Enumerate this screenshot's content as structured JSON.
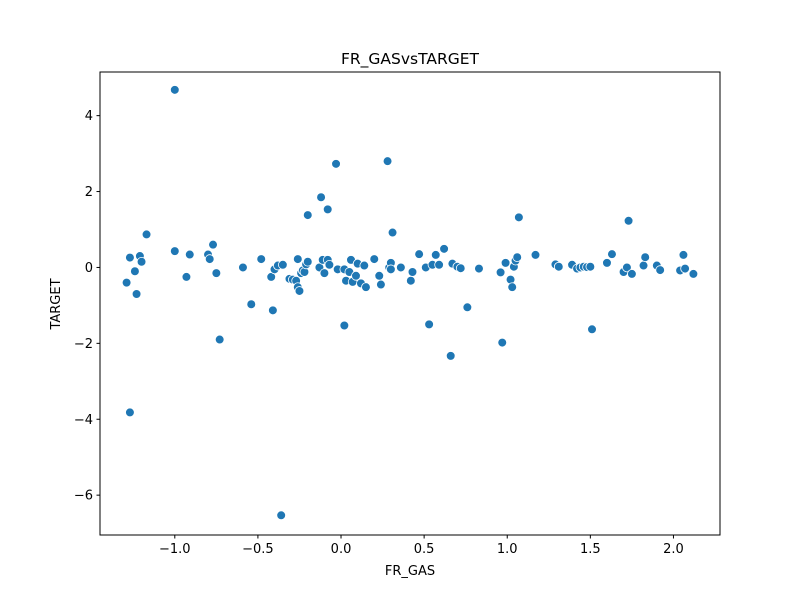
{
  "chart_data": {
    "type": "scatter",
    "title": "FR_GASvsTARGET",
    "xlabel": "FR_GAS",
    "ylabel": "TARGET",
    "xlim": [
      -1.45,
      2.28
    ],
    "ylim": [
      -7.05,
      5.15
    ],
    "xticks": [
      -1.0,
      -0.5,
      0.0,
      0.5,
      1.0,
      1.5,
      2.0
    ],
    "xtick_labels": [
      "−1.0",
      "−0.5",
      "0.0",
      "0.5",
      "1.0",
      "1.5",
      "2.0"
    ],
    "yticks": [
      -6,
      -4,
      -2,
      0,
      2,
      4
    ],
    "ytick_labels": [
      "−6",
      "−4",
      "−2",
      "0",
      "2",
      "4"
    ],
    "grid": false,
    "legend": "none",
    "color": "#1f77b4",
    "points": [
      {
        "x": -1.29,
        "y": -0.4
      },
      {
        "x": -1.27,
        "y": -3.82
      },
      {
        "x": -1.27,
        "y": 0.26
      },
      {
        "x": -1.24,
        "y": -0.1
      },
      {
        "x": -1.23,
        "y": -0.7
      },
      {
        "x": -1.21,
        "y": 0.3
      },
      {
        "x": -1.2,
        "y": 0.15
      },
      {
        "x": -1.17,
        "y": 0.87
      },
      {
        "x": -1.0,
        "y": 4.68
      },
      {
        "x": -1.0,
        "y": 0.43
      },
      {
        "x": -0.93,
        "y": -0.25
      },
      {
        "x": -0.91,
        "y": 0.34
      },
      {
        "x": -0.8,
        "y": 0.34
      },
      {
        "x": -0.79,
        "y": 0.22
      },
      {
        "x": -0.77,
        "y": 0.6
      },
      {
        "x": -0.75,
        "y": -0.15
      },
      {
        "x": -0.73,
        "y": -1.9
      },
      {
        "x": -0.59,
        "y": 0.0
      },
      {
        "x": -0.54,
        "y": -0.97
      },
      {
        "x": -0.48,
        "y": 0.22
      },
      {
        "x": -0.42,
        "y": -0.25
      },
      {
        "x": -0.41,
        "y": -1.13
      },
      {
        "x": -0.4,
        "y": -0.05
      },
      {
        "x": -0.38,
        "y": 0.05
      },
      {
        "x": -0.36,
        "y": -6.53
      },
      {
        "x": -0.35,
        "y": 0.07
      },
      {
        "x": -0.31,
        "y": -0.3
      },
      {
        "x": -0.29,
        "y": -0.32
      },
      {
        "x": -0.27,
        "y": -0.35
      },
      {
        "x": -0.26,
        "y": 0.22
      },
      {
        "x": -0.26,
        "y": -0.52
      },
      {
        "x": -0.25,
        "y": -0.62
      },
      {
        "x": -0.24,
        "y": -0.15
      },
      {
        "x": -0.23,
        "y": -0.08
      },
      {
        "x": -0.22,
        "y": -0.12
      },
      {
        "x": -0.21,
        "y": 0.08
      },
      {
        "x": -0.2,
        "y": 1.38
      },
      {
        "x": -0.2,
        "y": 0.15
      },
      {
        "x": -0.13,
        "y": 0.0
      },
      {
        "x": -0.12,
        "y": 1.85
      },
      {
        "x": -0.11,
        "y": 0.2
      },
      {
        "x": -0.1,
        "y": -0.15
      },
      {
        "x": -0.08,
        "y": 1.53
      },
      {
        "x": -0.08,
        "y": 0.2
      },
      {
        "x": -0.07,
        "y": 0.07
      },
      {
        "x": -0.03,
        "y": 2.73
      },
      {
        "x": -0.02,
        "y": -0.05
      },
      {
        "x": 0.02,
        "y": -0.05
      },
      {
        "x": 0.02,
        "y": -1.53
      },
      {
        "x": 0.03,
        "y": -0.35
      },
      {
        "x": 0.05,
        "y": -0.12
      },
      {
        "x": 0.06,
        "y": 0.2
      },
      {
        "x": 0.07,
        "y": -0.38
      },
      {
        "x": 0.09,
        "y": -0.22
      },
      {
        "x": 0.1,
        "y": 0.1
      },
      {
        "x": 0.12,
        "y": -0.42
      },
      {
        "x": 0.14,
        "y": 0.05
      },
      {
        "x": 0.15,
        "y": -0.52
      },
      {
        "x": 0.2,
        "y": 0.22
      },
      {
        "x": 0.23,
        "y": -0.22
      },
      {
        "x": 0.24,
        "y": -0.45
      },
      {
        "x": 0.28,
        "y": 2.8
      },
      {
        "x": 0.29,
        "y": 0.0
      },
      {
        "x": 0.3,
        "y": 0.12
      },
      {
        "x": 0.3,
        "y": -0.05
      },
      {
        "x": 0.31,
        "y": 0.92
      },
      {
        "x": 0.36,
        "y": 0.0
      },
      {
        "x": 0.42,
        "y": -0.35
      },
      {
        "x": 0.43,
        "y": -0.12
      },
      {
        "x": 0.47,
        "y": 0.35
      },
      {
        "x": 0.51,
        "y": 0.0
      },
      {
        "x": 0.53,
        "y": -1.5
      },
      {
        "x": 0.55,
        "y": 0.07
      },
      {
        "x": 0.57,
        "y": 0.33
      },
      {
        "x": 0.59,
        "y": 0.07
      },
      {
        "x": 0.62,
        "y": 0.49
      },
      {
        "x": 0.66,
        "y": -2.33
      },
      {
        "x": 0.67,
        "y": 0.1
      },
      {
        "x": 0.7,
        "y": 0.02
      },
      {
        "x": 0.72,
        "y": -0.02
      },
      {
        "x": 0.76,
        "y": -1.05
      },
      {
        "x": 0.83,
        "y": -0.03
      },
      {
        "x": 0.96,
        "y": -0.13
      },
      {
        "x": 0.97,
        "y": -1.98
      },
      {
        "x": 0.99,
        "y": 0.12
      },
      {
        "x": 1.02,
        "y": -0.32
      },
      {
        "x": 1.03,
        "y": -0.52
      },
      {
        "x": 1.04,
        "y": 0.02
      },
      {
        "x": 1.05,
        "y": 0.18
      },
      {
        "x": 1.06,
        "y": 0.27
      },
      {
        "x": 1.07,
        "y": 1.32
      },
      {
        "x": 1.17,
        "y": 0.33
      },
      {
        "x": 1.29,
        "y": 0.08
      },
      {
        "x": 1.31,
        "y": 0.02
      },
      {
        "x": 1.39,
        "y": 0.07
      },
      {
        "x": 1.42,
        "y": -0.03
      },
      {
        "x": 1.44,
        "y": 0.0
      },
      {
        "x": 1.46,
        "y": 0.02
      },
      {
        "x": 1.48,
        "y": 0.01
      },
      {
        "x": 1.5,
        "y": 0.02
      },
      {
        "x": 1.51,
        "y": -1.63
      },
      {
        "x": 1.6,
        "y": 0.12
      },
      {
        "x": 1.63,
        "y": 0.35
      },
      {
        "x": 1.7,
        "y": -0.12
      },
      {
        "x": 1.72,
        "y": 0.0
      },
      {
        "x": 1.73,
        "y": 1.23
      },
      {
        "x": 1.75,
        "y": -0.17
      },
      {
        "x": 1.82,
        "y": 0.05
      },
      {
        "x": 1.83,
        "y": 0.27
      },
      {
        "x": 1.9,
        "y": 0.05
      },
      {
        "x": 1.92,
        "y": -0.07
      },
      {
        "x": 2.04,
        "y": -0.08
      },
      {
        "x": 2.06,
        "y": 0.33
      },
      {
        "x": 2.07,
        "y": -0.03
      },
      {
        "x": 2.12,
        "y": -0.17
      }
    ]
  }
}
